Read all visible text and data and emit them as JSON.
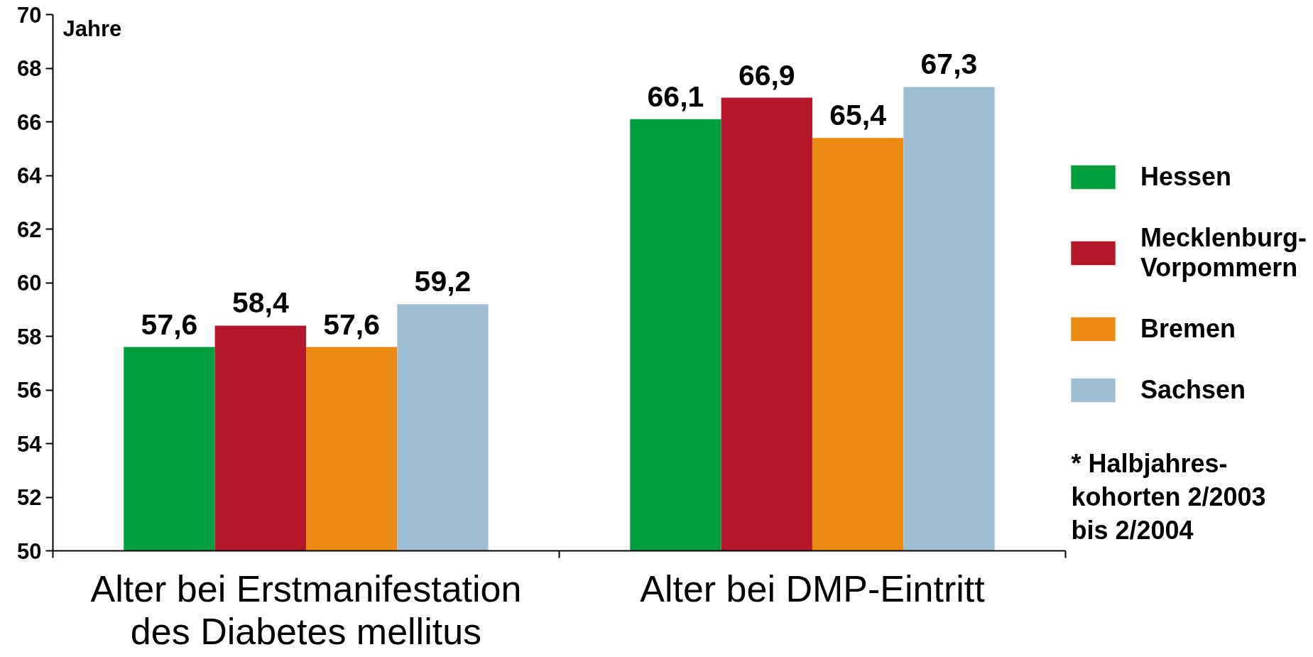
{
  "chart_data": {
    "type": "bar",
    "ylabel": "Jahre",
    "categories": [
      "Alter bei Erstmanifestation des Diabetes mellitus",
      "Alter bei DMP-Eintritt"
    ],
    "series": [
      {
        "name": "Hessen",
        "color": "#009e3d",
        "values": [
          57.6,
          66.1
        ],
        "value_labels": [
          "57,6",
          "66,1"
        ]
      },
      {
        "name": "Mecklenburg-Vorpommern",
        "color": "#b41729",
        "values": [
          58.4,
          66.9
        ],
        "value_labels": [
          "58,4",
          "66,9"
        ]
      },
      {
        "name": "Bremen",
        "color": "#ea8a11",
        "values": [
          57.6,
          65.4
        ],
        "value_labels": [
          "57,6",
          "65,4"
        ]
      },
      {
        "name": "Sachsen",
        "color": "#a0bed3",
        "values": [
          59.2,
          67.3
        ],
        "value_labels": [
          "59,2",
          "67,3"
        ]
      }
    ],
    "ylim": [
      50,
      70
    ],
    "yticks": [
      50,
      52,
      54,
      56,
      58,
      60,
      62,
      64,
      66,
      68,
      70
    ],
    "grid": false,
    "legend": "right",
    "annotations": [
      "* Halbjahres-\nkohorten 2/2003\nbis 2/2004"
    ]
  }
}
